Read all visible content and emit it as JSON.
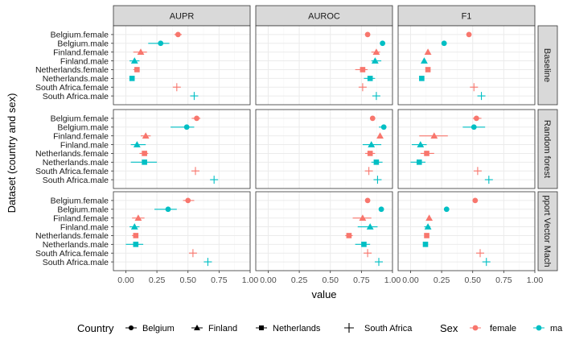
{
  "chart_data": {
    "type": "scatter",
    "facet_layout": "3x3 grid: columns = metric, rows = model",
    "xlabel": "value",
    "ylabel": "Dataset (country and sex)",
    "xlim": [
      -0.1,
      1.0
    ],
    "x_ticks": [
      0.0,
      0.25,
      0.5,
      0.75,
      1.0
    ],
    "x_tick_labels": [
      "0.00",
      "0.25",
      "0.50",
      "0.75",
      "1.00"
    ],
    "grid": true,
    "columns": [
      "AUPR",
      "AUROC",
      "F1"
    ],
    "rows": [
      {
        "label": "Baseline",
        "strip_label": "Baseline"
      },
      {
        "label": "Random forest",
        "strip_label": "Random forest"
      },
      {
        "label": "Support Vector Machine",
        "strip_label": "pport Vector Mach"
      }
    ],
    "categories": [
      {
        "label": "Belgium.female",
        "country": "Belgium",
        "sex": "female"
      },
      {
        "label": "Belgium.male",
        "country": "Belgium",
        "sex": "male"
      },
      {
        "label": "Finland.female",
        "country": "Finland",
        "sex": "female"
      },
      {
        "label": "Finland.male",
        "country": "Finland",
        "sex": "male"
      },
      {
        "label": "Netherlands.female",
        "country": "Netherlands",
        "sex": "female"
      },
      {
        "label": "Netherlands.male",
        "country": "Netherlands",
        "sex": "male"
      },
      {
        "label": "South Africa.female",
        "country": "South Africa",
        "sex": "female"
      },
      {
        "label": "South Africa.male",
        "country": "South Africa",
        "sex": "male"
      }
    ],
    "panels": [
      [
        {
          "points": [
            [
              0.42,
              0.39,
              0.45
            ],
            [
              0.28,
              0.18,
              0.35
            ],
            [
              0.12,
              0.06,
              0.17
            ],
            [
              0.07,
              0.03,
              0.11
            ],
            [
              0.09,
              0.06,
              0.11
            ],
            [
              0.05,
              0.04,
              0.06
            ],
            [
              0.41,
              null,
              null
            ],
            [
              0.55,
              null,
              null
            ]
          ]
        },
        {
          "points": [
            [
              0.8,
              null,
              null
            ],
            [
              0.92,
              null,
              null
            ],
            [
              0.87,
              0.83,
              0.9
            ],
            [
              0.86,
              0.83,
              0.91
            ],
            [
              0.76,
              0.7,
              0.8
            ],
            [
              0.82,
              0.77,
              0.86
            ],
            [
              0.76,
              null,
              null
            ],
            [
              0.87,
              null,
              null
            ]
          ]
        },
        {
          "points": [
            [
              0.47,
              null,
              null
            ],
            [
              0.27,
              null,
              null
            ],
            [
              0.14,
              null,
              null
            ],
            [
              0.11,
              null,
              null
            ],
            [
              0.14,
              0.12,
              0.16
            ],
            [
              0.09,
              null,
              null
            ],
            [
              0.51,
              null,
              null
            ],
            [
              0.57,
              null,
              null
            ]
          ]
        }
      ],
      [
        {
          "points": [
            [
              0.57,
              0.53,
              0.6
            ],
            [
              0.49,
              0.36,
              0.55
            ],
            [
              0.16,
              0.12,
              0.2
            ],
            [
              0.09,
              0.04,
              0.16
            ],
            [
              0.15,
              0.11,
              0.18
            ],
            [
              0.15,
              0.04,
              0.25
            ],
            [
              0.56,
              null,
              null
            ],
            [
              0.71,
              null,
              null
            ]
          ]
        },
        {
          "points": [
            [
              0.84,
              null,
              null
            ],
            [
              0.93,
              0.89,
              0.95
            ],
            [
              0.9,
              null,
              null
            ],
            [
              0.83,
              0.76,
              0.91
            ],
            [
              0.82,
              0.78,
              0.86
            ],
            [
              0.87,
              0.83,
              0.92
            ],
            [
              0.81,
              null,
              null
            ],
            [
              0.88,
              null,
              null
            ]
          ]
        },
        {
          "points": [
            [
              0.53,
              0.5,
              0.57
            ],
            [
              0.51,
              0.42,
              0.6
            ],
            [
              0.19,
              0.07,
              0.3
            ],
            [
              0.08,
              0.01,
              0.13
            ],
            [
              0.13,
              0.08,
              0.19
            ],
            [
              0.07,
              0.0,
              0.12
            ],
            [
              0.54,
              null,
              null
            ],
            [
              0.63,
              null,
              null
            ]
          ]
        }
      ],
      [
        {
          "points": [
            [
              0.5,
              0.46,
              0.55
            ],
            [
              0.34,
              0.23,
              0.41
            ],
            [
              0.1,
              0.05,
              0.15
            ],
            [
              0.07,
              0.03,
              0.11
            ],
            [
              0.08,
              0.05,
              0.1
            ],
            [
              0.08,
              0.0,
              0.14
            ],
            [
              0.54,
              null,
              null
            ],
            [
              0.66,
              null,
              null
            ]
          ]
        },
        {
          "points": [
            [
              0.8,
              null,
              null
            ],
            [
              0.91,
              null,
              null
            ],
            [
              0.76,
              0.68,
              0.83
            ],
            [
              0.82,
              0.72,
              0.88
            ],
            [
              0.65,
              0.62,
              0.68
            ],
            [
              0.77,
              0.7,
              0.82
            ],
            [
              0.8,
              null,
              null
            ],
            [
              0.89,
              null,
              null
            ]
          ]
        },
        {
          "points": [
            [
              0.52,
              null,
              null
            ],
            [
              0.29,
              null,
              null
            ],
            [
              0.15,
              null,
              null
            ],
            [
              0.14,
              0.11,
              0.16
            ],
            [
              0.13,
              null,
              null
            ],
            [
              0.12,
              null,
              null
            ],
            [
              0.56,
              null,
              null
            ],
            [
              0.61,
              null,
              null
            ]
          ]
        }
      ]
    ],
    "legend": {
      "position": "bottom",
      "country_title": "Country",
      "country_entries": [
        {
          "label": "Belgium",
          "shape": "circle"
        },
        {
          "label": "Finland",
          "shape": "triangle"
        },
        {
          "label": "Netherlands",
          "shape": "square"
        },
        {
          "label": "South Africa",
          "shape": "plus"
        }
      ],
      "sex_title": "Sex",
      "sex_entries": [
        {
          "label": "female",
          "color": "#F8766D"
        },
        {
          "label": "ma",
          "color": "#00BFC4"
        }
      ]
    },
    "colors": {
      "female": "#F8766D",
      "male": "#00BFC4",
      "strip": "#D9D9D9",
      "grid_major": "#EBEBEB",
      "grid_minor": "#F5F5F5",
      "frame": "#333333",
      "text": "#000000",
      "axis_text": "#4D4D4D"
    }
  }
}
